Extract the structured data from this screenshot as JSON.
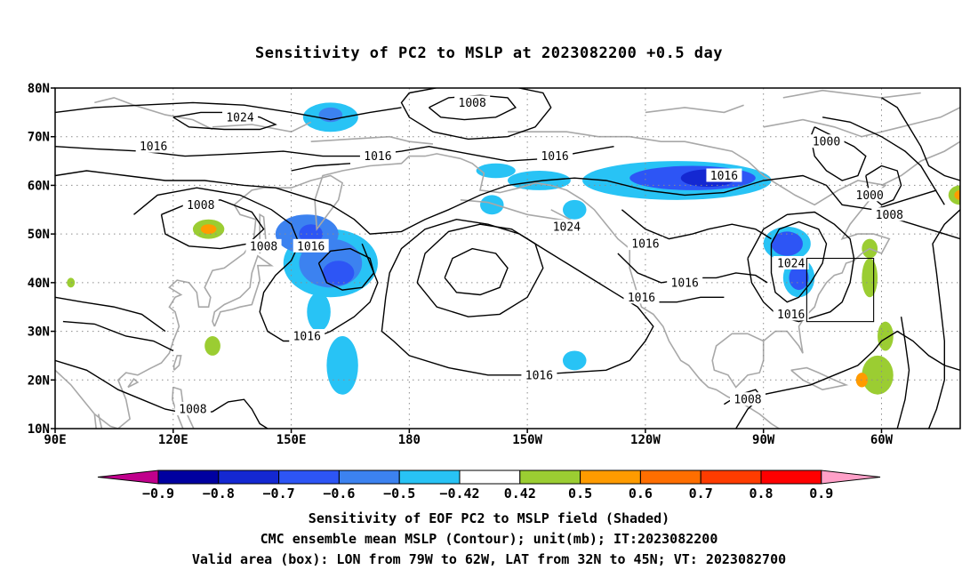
{
  "title": "Sensitivity of PC2 to MSLP at 2023082200 +0.5 day",
  "axes": {
    "lat_ticks": [
      "80N",
      "70N",
      "60N",
      "50N",
      "40N",
      "30N",
      "20N",
      "10N"
    ],
    "lon_ticks": [
      "90E",
      "120E",
      "150E",
      "180",
      "150W",
      "120W",
      "90W",
      "60W"
    ]
  },
  "contour_labels": [
    {
      "text": "1008",
      "lon": 196,
      "lat": 77
    },
    {
      "text": "1024",
      "lon": 137,
      "lat": 74
    },
    {
      "text": "1016",
      "lon": 115,
      "lat": 68
    },
    {
      "text": "1016",
      "lon": 172,
      "lat": 66
    },
    {
      "text": "1016",
      "lon": 217,
      "lat": 66
    },
    {
      "text": "1016",
      "lon": 260,
      "lat": 62
    },
    {
      "text": "1000",
      "lon": 286,
      "lat": 69
    },
    {
      "text": "1000",
      "lon": 297,
      "lat": 58
    },
    {
      "text": "1008",
      "lon": 302,
      "lat": 54
    },
    {
      "text": "1008",
      "lon": 127,
      "lat": 56
    },
    {
      "text": "1008",
      "lon": 143,
      "lat": 47.5
    },
    {
      "text": "1016",
      "lon": 155,
      "lat": 47.5
    },
    {
      "text": "1024",
      "lon": 220,
      "lat": 51.5
    },
    {
      "text": "1016",
      "lon": 240,
      "lat": 48
    },
    {
      "text": "1016",
      "lon": 250,
      "lat": 40
    },
    {
      "text": "1016",
      "lon": 239,
      "lat": 37
    },
    {
      "text": "1024",
      "lon": 277,
      "lat": 44
    },
    {
      "text": "1016",
      "lon": 277,
      "lat": 33.5
    },
    {
      "text": "1016",
      "lon": 154,
      "lat": 29
    },
    {
      "text": "1016",
      "lon": 213,
      "lat": 21
    },
    {
      "text": "1008",
      "lon": 266,
      "lat": 16
    },
    {
      "text": "1008",
      "lon": 125,
      "lat": 14
    }
  ],
  "valid_box": {
    "lon_min": 281,
    "lon_max": 298,
    "lat_min": 32,
    "lat_max": 45
  },
  "colorbar": {
    "labels": [
      "-0.9",
      "-0.8",
      "-0.7",
      "-0.6",
      "-0.5",
      "-0.42",
      "0.42",
      "0.5",
      "0.6",
      "0.7",
      "0.8",
      "0.9"
    ],
    "colors": [
      "#c0008c",
      "#0000a0",
      "#1428d2",
      "#2d55f5",
      "#3c82f0",
      "#28c3f5",
      "#ffffff",
      "#9bcd32",
      "#ff9b00",
      "#ff6e00",
      "#ff3c00",
      "#ff0000",
      "#ffa0c8"
    ]
  },
  "captions": {
    "line1": "Sensitivity of EOF PC2 to MSLP field (Shaded)",
    "line2": "CMC ensemble mean MSLP (Contour); unit(mb); IT:2023082200",
    "line3": "Valid area (box): LON from 79W to 62W, LAT from 32N to 45N; VT: 2023082700"
  },
  "shading": {
    "negative": [
      {
        "lon": 160,
        "lat": 74,
        "rx": 7,
        "ry": 3,
        "c": "#28c3f5"
      },
      {
        "lon": 160,
        "lat": 74.5,
        "rx": 3,
        "ry": 1.5,
        "c": "#3c82f0"
      },
      {
        "lon": 248,
        "lat": 61,
        "rx": 24,
        "ry": 4,
        "c": "#28c3f5"
      },
      {
        "lon": 252,
        "lat": 61.5,
        "rx": 16,
        "ry": 2.5,
        "c": "#2d55f5"
      },
      {
        "lon": 256,
        "lat": 61.5,
        "rx": 7,
        "ry": 1.8,
        "c": "#1428d2"
      },
      {
        "lon": 202,
        "lat": 63,
        "rx": 5,
        "ry": 1.5,
        "c": "#28c3f5"
      },
      {
        "lon": 213,
        "lat": 61,
        "rx": 8,
        "ry": 2,
        "c": "#28c3f5"
      },
      {
        "lon": 201,
        "lat": 56,
        "rx": 3,
        "ry": 2,
        "c": "#28c3f5"
      },
      {
        "lon": 222,
        "lat": 55,
        "rx": 3,
        "ry": 2,
        "c": "#28c3f5"
      },
      {
        "lon": 160,
        "lat": 44,
        "rx": 12,
        "ry": 7,
        "c": "#28c3f5"
      },
      {
        "lon": 160,
        "lat": 44,
        "rx": 8,
        "ry": 5,
        "c": "#3c82f0"
      },
      {
        "lon": 162,
        "lat": 42,
        "rx": 4,
        "ry": 2.5,
        "c": "#2d55f5"
      },
      {
        "lon": 154,
        "lat": 50,
        "rx": 8,
        "ry": 4,
        "c": "#3c82f0"
      },
      {
        "lon": 155,
        "lat": 50,
        "rx": 3,
        "ry": 2,
        "c": "#2d55f5"
      },
      {
        "lon": 163,
        "lat": 23,
        "rx": 4,
        "ry": 6,
        "c": "#28c3f5"
      },
      {
        "lon": 157,
        "lat": 34,
        "rx": 3,
        "ry": 4,
        "c": "#28c3f5"
      },
      {
        "lon": 222,
        "lat": 24,
        "rx": 3,
        "ry": 2,
        "c": "#28c3f5"
      },
      {
        "lon": 276,
        "lat": 48,
        "rx": 6,
        "ry": 3.5,
        "c": "#28c3f5"
      },
      {
        "lon": 276,
        "lat": 48,
        "rx": 4,
        "ry": 2.5,
        "c": "#2d55f5"
      },
      {
        "lon": 279,
        "lat": 41,
        "rx": 4,
        "ry": 4,
        "c": "#28c3f5"
      },
      {
        "lon": 279,
        "lat": 41,
        "rx": 2.5,
        "ry": 2.5,
        "c": "#2d55f5"
      }
    ],
    "positive": [
      {
        "lon": 129,
        "lat": 51,
        "rx": 4,
        "ry": 2,
        "c": "#9bcd32"
      },
      {
        "lon": 129,
        "lat": 51,
        "rx": 2,
        "ry": 1,
        "c": "#ff9b00"
      },
      {
        "lon": 130,
        "lat": 27,
        "rx": 2,
        "ry": 2,
        "c": "#9bcd32"
      },
      {
        "lon": 299,
        "lat": 21,
        "rx": 4,
        "ry": 4,
        "c": "#9bcd32"
      },
      {
        "lon": 295,
        "lat": 20,
        "rx": 1.5,
        "ry": 1.5,
        "c": "#ff9b00"
      },
      {
        "lon": 297,
        "lat": 41,
        "rx": 2,
        "ry": 4,
        "c": "#9bcd32"
      },
      {
        "lon": 297,
        "lat": 47,
        "rx": 2,
        "ry": 2,
        "c": "#9bcd32"
      },
      {
        "lon": 301,
        "lat": 29,
        "rx": 2,
        "ry": 3,
        "c": "#9bcd32"
      },
      {
        "lon": 320,
        "lat": 58,
        "rx": 3,
        "ry": 2,
        "c": "#9bcd32"
      },
      {
        "lon": 320,
        "lat": 58,
        "rx": 1.5,
        "ry": 1,
        "c": "#ff9b00"
      },
      {
        "lon": 94,
        "lat": 40,
        "rx": 1,
        "ry": 1,
        "c": "#9bcd32"
      }
    ]
  }
}
